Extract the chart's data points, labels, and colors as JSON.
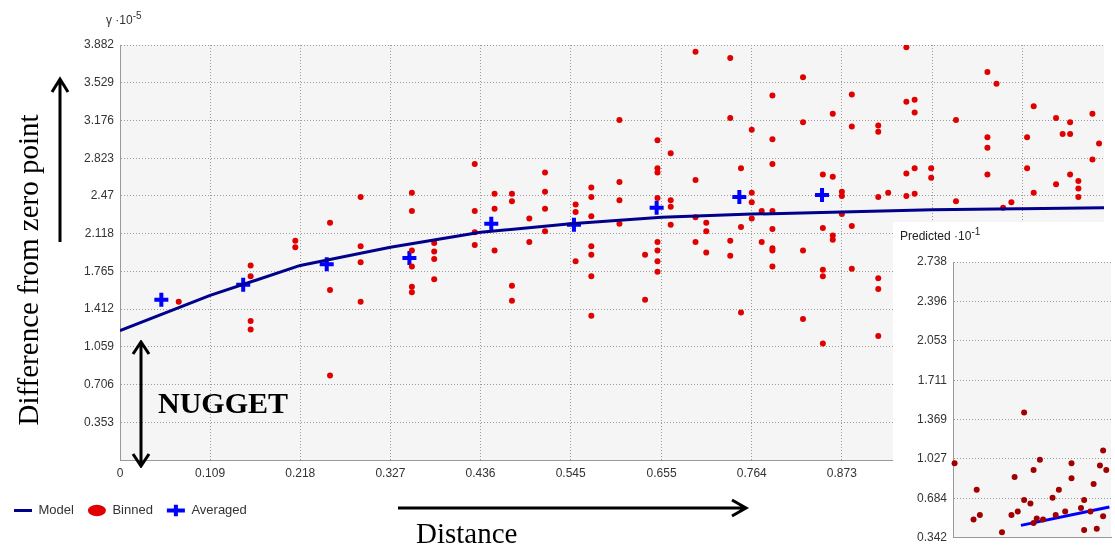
{
  "chart_data": [
    {
      "type": "scatter",
      "xlabel": "Distance",
      "ylabel": "Difference from zero point",
      "annotations": [
        "γ ·10$^{-5}$",
        "NUGGET"
      ],
      "xlim": [
        0,
        1.19
      ],
      "ylim": [
        0,
        3.882
      ],
      "xticks": [
        0,
        0.109,
        0.218,
        0.327,
        0.436,
        0.545,
        0.655,
        0.764,
        0.873,
        {
          "value": 0.982,
          "label": null
        },
        {
          "value": 1.091,
          "label": null
        }
      ],
      "yticks": [
        0.353,
        0.706,
        1.059,
        1.412,
        1.765,
        2.118,
        2.47,
        2.823,
        3.176,
        3.529,
        3.882
      ],
      "grid": true,
      "legend": "bottom left",
      "series": [
        {
          "name": "Model",
          "type": "line",
          "color": "#00008b",
          "marker": "none",
          "x": [
            0,
            0.109,
            0.218,
            0.327,
            0.436,
            0.545,
            0.655,
            0.764,
            0.873,
            0.982,
            1.091,
            1.19
          ],
          "values": [
            1.21,
            1.54,
            1.82,
            1.99,
            2.13,
            2.21,
            2.27,
            2.3,
            2.32,
            2.34,
            2.35,
            2.36
          ]
        },
        {
          "name": "Binned",
          "type": "scatter",
          "color": "#e00000",
          "marker": "circle",
          "x": [
            0.158,
            0.212,
            0.212,
            0.254,
            0.291,
            0.291,
            0.291,
            0.353,
            0.353,
            0.353,
            0.353,
            0.38,
            0.38,
            0.38,
            0.429,
            0.429,
            0.429,
            0.429,
            0.071,
            0.158,
            0.158,
            0.158,
            0.254,
            0.254,
            0.291,
            0.353,
            0.353,
            0.38,
            0.453,
            0.453,
            0.453,
            0.474,
            0.474,
            0.495,
            0.495,
            0.514,
            0.514,
            0.514,
            0.514,
            0.551,
            0.551,
            0.551,
            0.57,
            0.57,
            0.57,
            0.57,
            0.57,
            0.604,
            0.604,
            0.604,
            0.604,
            0.635,
            0.65,
            0.65,
            0.65,
            0.65,
            0.65,
            0.65,
            0.65,
            0.666,
            0.666,
            0.666,
            0.666,
            0.696,
            0.696,
            0.696,
            0.696,
            0.709,
            0.709,
            0.709,
            0.738,
            0.738,
            0.738,
            0.738,
            0.751,
            0.751,
            0.764,
            0.764,
            0.764,
            0.764,
            0.776,
            0.776,
            0.789,
            0.789,
            0.789,
            0.789,
            0.789,
            0.789,
            0.789,
            0.826,
            0.826,
            0.826,
            0.85,
            0.85,
            0.85,
            0.862,
            0.862,
            0.862,
            0.873,
            0.873,
            0.873,
            0.885,
            0.885,
            0.885,
            0.885,
            0.917,
            0.917,
            0.917,
            0.929,
            0.474,
            0.474,
            0.57,
            0.57,
            0.635,
            0.65,
            0.751,
            0.826,
            0.85,
            0.85,
            0.862,
            0.917,
            0.917,
            0.917,
            0.789,
            0.951,
            0.951,
            0.961,
            0.961,
            0.951,
            0.961,
            0.951,
            0.961,
            0.981,
            0.981,
            1.011,
            1.011,
            1.049,
            1.06,
            1.049,
            1.049,
            1.049,
            1.068,
            1.078,
            1.105,
            1.097,
            1.097,
            1.105,
            1.132,
            1.149,
            1.14,
            1.149,
            1.149,
            1.132,
            1.159,
            1.159,
            1.159,
            1.176,
            1.184,
            1.176
          ],
          "values": [
            1.82,
            2.05,
            1.99,
            2.22,
            2.46,
            2.0,
            1.85,
            2.5,
            2.33,
            1.96,
            1.81,
            2.03,
            1.95,
            1.88,
            2.77,
            2.33,
            2.13,
            2.01,
            1.48,
            1.72,
            1.3,
            1.22,
            1.59,
            0.79,
            1.48,
            1.62,
            1.57,
            1.69,
            2.49,
            2.35,
            1.96,
            2.49,
            2.42,
            2.26,
            2.04,
            2.69,
            2.51,
            2.35,
            2.14,
            2.39,
            2.32,
            1.86,
            2.55,
            2.46,
            2.28,
            2.0,
            1.92,
            3.18,
            2.6,
            2.43,
            2.21,
            1.92,
            2.99,
            2.73,
            2.69,
            2.45,
            2.04,
            1.96,
            1.86,
            2.87,
            2.43,
            2.37,
            2.2,
            3.82,
            2.62,
            2.27,
            2.04,
            2.22,
            2.14,
            1.94,
            3.76,
            3.2,
            2.05,
            1.91,
            2.73,
            2.18,
            3.09,
            2.5,
            2.41,
            2.26,
            2.33,
            2.04,
            3.41,
            3.0,
            2.77,
            2.33,
            2.16,
            1.96,
            1.81,
            3.58,
            3.16,
            1.96,
            2.67,
            2.17,
            1.78,
            3.24,
            2.65,
            2.1,
            2.51,
            2.47,
            2.3,
            3.42,
            3.12,
            2.19,
            1.79,
            3.13,
            3.07,
            2.46,
            2.5,
            1.63,
            1.49,
            1.72,
            1.35,
            1.5,
            1.76,
            1.38,
            1.32,
            1.72,
            1.09,
            2.06,
            1.7,
            1.6,
            1.16,
            1.98,
            3.86,
            3.35,
            3.37,
            3.25,
            2.68,
            2.73,
            2.47,
            2.49,
            2.73,
            2.64,
            3.18,
            2.42,
            3.63,
            3.52,
            3.02,
            2.92,
            2.67,
            2.36,
            2.41,
            3.31,
            3.02,
            2.73,
            2.5,
            3.2,
            3.16,
            3.05,
            3.05,
            2.67,
            2.58,
            2.61,
            2.54,
            2.46,
            3.24,
            2.96,
            2.81
          ]
        },
        {
          "name": "Averaged",
          "type": "scatter",
          "color": "#0000ff",
          "marker": "cross",
          "x": [
            0.05,
            0.149,
            0.25,
            0.35,
            0.449,
            0.549,
            0.649,
            0.749,
            0.849
          ],
          "values": [
            1.5,
            1.64,
            1.83,
            1.89,
            2.21,
            2.2,
            2.36,
            2.46,
            2.48
          ]
        }
      ]
    },
    {
      "type": "scatter",
      "ylabel": "Predicted ·10$^{-1}$",
      "ylim": [
        0.342,
        2.738
      ],
      "yticks": [
        0.342,
        0.684,
        1.027,
        1.369,
        1.711,
        2.053,
        2.396,
        2.738
      ],
      "grid": "y",
      "tick_labels": "y",
      "categories": [
        null,
        null,
        null,
        null,
        null,
        null,
        null,
        null,
        null,
        null,
        null,
        null,
        null,
        null,
        null,
        null,
        null,
        null,
        null,
        null,
        null,
        null,
        null,
        null,
        null,
        null,
        null,
        null,
        null,
        null,
        null,
        null,
        null,
        null,
        null,
        null,
        null,
        null,
        null,
        null,
        null,
        null,
        null,
        null,
        null,
        null,
        null,
        null,
        null,
        null
      ],
      "series": [
        {
          "type": "scatter",
          "color": "#a00000",
          "marker": "circle",
          "values": [
            0.99,
            null,
            null,
            null,
            null,
            null,
            0.5,
            0.76,
            0.54,
            null,
            null,
            null,
            null,
            null,
            null,
            0.39,
            null,
            null,
            0.54,
            0.87,
            0.57,
            null,
            1.43,
            null,
            0.64,
            0.93,
            0.51,
            1.02,
            0.5,
            null,
            null,
            0.69,
            0.54,
            0.76,
            null,
            0.57,
            null,
            0.99,
            null,
            null,
            0.6,
            0.67,
            null,
            0.57,
            0.81,
            0.42,
            0.97,
            1.1,
            0.93,
            null
          ]
        },
        {
          "type": "scatter",
          "color": "#a00000",
          "marker": "circle",
          "values": [
            null,
            null,
            null,
            null,
            null,
            null,
            null,
            null,
            null,
            null,
            null,
            null,
            null,
            null,
            null,
            null,
            null,
            null,
            null,
            null,
            null,
            null,
            0.67,
            null,
            null,
            0.47,
            null,
            null,
            null,
            null,
            null,
            null,
            null,
            null,
            null,
            null,
            null,
            0.86,
            null,
            null,
            null,
            0.41,
            null,
            null,
            null,
            null,
            null,
            0.53,
            null,
            null
          ]
        },
        {
          "type": "line",
          "color": "#0000ff",
          "marker": "none",
          "values": [
            null,
            null,
            null,
            null,
            null,
            null,
            null,
            null,
            null,
            null,
            null,
            null,
            null,
            null,
            null,
            null,
            null,
            null,
            null,
            null,
            null,
            0.45,
            null,
            null,
            null,
            null,
            null,
            null,
            null,
            null,
            null,
            null,
            null,
            null,
            null,
            null,
            null,
            null,
            null,
            null,
            null,
            null,
            null,
            null,
            null,
            null,
            null,
            null,
            null,
            0.61
          ]
        }
      ]
    }
  ]
}
